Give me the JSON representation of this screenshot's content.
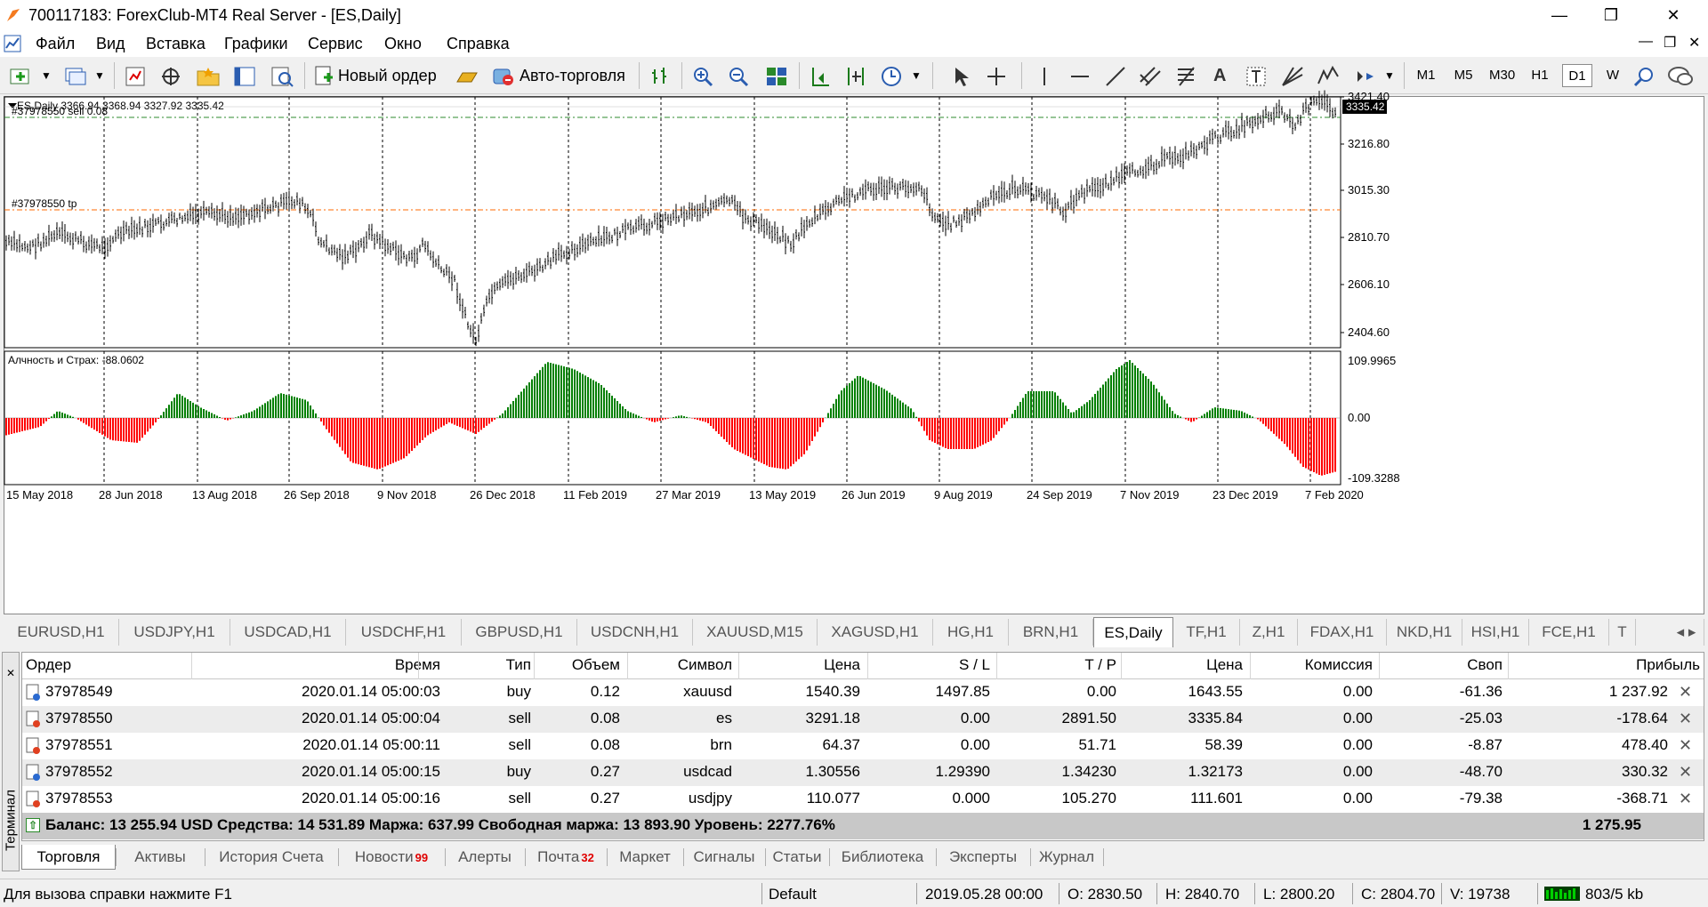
{
  "window": {
    "title": "700117183: ForexClub-MT4 Real Server - [ES,Daily]",
    "minimize": "—",
    "restore": "❐",
    "close": "✕"
  },
  "menu": [
    "Файл",
    "Вид",
    "Вставка",
    "Графики",
    "Сервис",
    "Окно",
    "Справка"
  ],
  "toolbar": {
    "new_order_label": "Новый ордер",
    "autotrading_label": "Авто-торговля",
    "timeframes": [
      "M1",
      "M5",
      "M30",
      "H1",
      "D1",
      "W"
    ],
    "active_timeframe": "D1"
  },
  "chart": {
    "header": "ES,Daily  3366.94 3368.94 3327.92 3335.42",
    "order_sell_label": "#37978550 sell 0.08",
    "order_tp_label": "#37978550 tp",
    "indicator_label": "Алчность и Страх: -88.0602",
    "price_ticks": [
      "3421.40",
      "3216.80",
      "3015.30",
      "2810.70",
      "2606.10",
      "2404.60"
    ],
    "current_price": "3335.42",
    "indicator_ticks": [
      "109.9965",
      "0.00",
      "-109.3288"
    ],
    "date_ticks": [
      "15 May 2018",
      "28 Jun 2018",
      "13 Aug 2018",
      "26 Sep 2018",
      "9 Nov 2018",
      "26 Dec 2018",
      "11 Feb 2019",
      "27 Mar 2019",
      "13 May 2019",
      "26 Jun 2019",
      "9 Aug 2019",
      "24 Sep 2019",
      "7 Nov 2019",
      "23 Dec 2019",
      "7 Feb 2020"
    ],
    "colors": {
      "bull": "#008000",
      "bear": "#ff0000",
      "sell_line": "#2e8b2e",
      "tp_line": "#ff6a00"
    }
  },
  "chart_tabs": [
    "EURUSD,H1",
    "USDJPY,H1",
    "USDCAD,H1",
    "USDCHF,H1",
    "GBPUSD,H1",
    "USDCNH,H1",
    "XAUUSD,M15",
    "XAGUSD,H1",
    "HG,H1",
    "BRN,H1",
    "ES,Daily",
    "TF,H1",
    "Z,H1",
    "FDAX,H1",
    "NKD,H1",
    "HSI,H1",
    "FCE,H1",
    "T"
  ],
  "active_chart_tab": "ES,Daily",
  "orders": {
    "headers": [
      "Ордер",
      "Время",
      "Тип",
      "Объем",
      "Символ",
      "Цена",
      "S / L",
      "T / P",
      "Цена",
      "Комиссия",
      "Своп",
      "Прибыль"
    ],
    "rows": [
      {
        "order": "37978549",
        "time": "2020.01.14 05:00:03",
        "type": "buy",
        "volume": "0.12",
        "symbol": "xauusd",
        "price": "1540.39",
        "sl": "1497.85",
        "tp": "0.00",
        "cur": "1643.55",
        "commission": "0.00",
        "swap": "-61.36",
        "profit": "1 237.92"
      },
      {
        "order": "37978550",
        "time": "2020.01.14 05:00:04",
        "type": "sell",
        "volume": "0.08",
        "symbol": "es",
        "price": "3291.18",
        "sl": "0.00",
        "tp": "2891.50",
        "cur": "3335.84",
        "commission": "0.00",
        "swap": "-25.03",
        "profit": "-178.64"
      },
      {
        "order": "37978551",
        "time": "2020.01.14 05:00:11",
        "type": "sell",
        "volume": "0.08",
        "symbol": "brn",
        "price": "64.37",
        "sl": "0.00",
        "tp": "51.71",
        "cur": "58.39",
        "commission": "0.00",
        "swap": "-8.87",
        "profit": "478.40"
      },
      {
        "order": "37978552",
        "time": "2020.01.14 05:00:15",
        "type": "buy",
        "volume": "0.27",
        "symbol": "usdcad",
        "price": "1.30556",
        "sl": "1.29390",
        "tp": "1.34230",
        "cur": "1.32173",
        "commission": "0.00",
        "swap": "-48.70",
        "profit": "330.32"
      },
      {
        "order": "37978553",
        "time": "2020.01.14 05:00:16",
        "type": "sell",
        "volume": "0.27",
        "symbol": "usdjpy",
        "price": "110.077",
        "sl": "0.000",
        "tp": "105.270",
        "cur": "111.601",
        "commission": "0.00",
        "swap": "-79.38",
        "profit": "-368.71"
      }
    ],
    "summary": "Баланс: 13 255.94 USD  Средства: 14 531.89  Маржа: 637.99  Свободная маржа: 13 893.90  Уровень: 2277.76%",
    "summary_profit": "1 275.95"
  },
  "terminal_label": "Терминал",
  "terminal_tabs": [
    {
      "label": "Торговля",
      "badge": ""
    },
    {
      "label": "Активы",
      "badge": ""
    },
    {
      "label": "История Счета",
      "badge": ""
    },
    {
      "label": "Новости",
      "badge": "99"
    },
    {
      "label": "Алерты",
      "badge": ""
    },
    {
      "label": "Почта",
      "badge": "32"
    },
    {
      "label": "Маркет",
      "badge": ""
    },
    {
      "label": "Сигналы",
      "badge": ""
    },
    {
      "label": "Статьи",
      "badge": ""
    },
    {
      "label": "Библиотека",
      "badge": ""
    },
    {
      "label": "Эксперты",
      "badge": ""
    },
    {
      "label": "Журнал",
      "badge": ""
    }
  ],
  "status": {
    "help": "Для вызова справки нажмите F1",
    "profile": "Default",
    "datetime": "2019.05.28 00:00",
    "open": "O: 2830.50",
    "high": "H: 2840.70",
    "low": "L: 2800.20",
    "close": "C: 2804.70",
    "volume": "V: 19738",
    "traffic": "803/5 kb"
  }
}
